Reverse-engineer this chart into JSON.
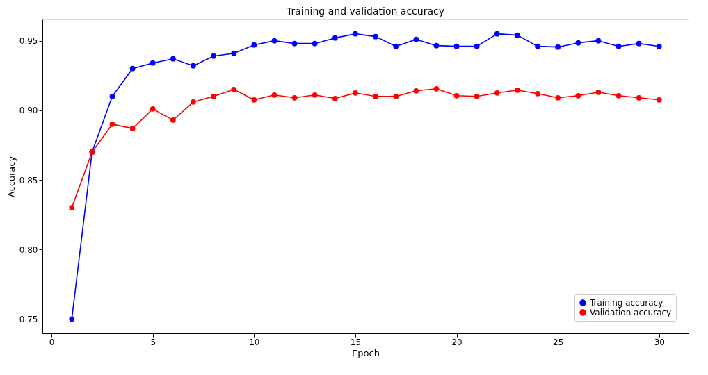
{
  "chart_data": {
    "type": "line",
    "title": "Training and validation accuracy",
    "xlabel": "Epoch",
    "ylabel": "Accuracy",
    "x": [
      1,
      2,
      3,
      4,
      5,
      6,
      7,
      8,
      9,
      10,
      11,
      12,
      13,
      14,
      15,
      16,
      17,
      18,
      19,
      20,
      21,
      22,
      23,
      24,
      25,
      26,
      27,
      28,
      29,
      30
    ],
    "series": [
      {
        "name": "Training accuracy",
        "color": "#0000ff",
        "values": [
          0.75,
          0.87,
          0.91,
          0.93,
          0.934,
          0.937,
          0.932,
          0.939,
          0.941,
          0.947,
          0.95,
          0.948,
          0.948,
          0.952,
          0.955,
          0.953,
          0.946,
          0.951,
          0.9465,
          0.946,
          0.946,
          0.955,
          0.954,
          0.946,
          0.9455,
          0.9485,
          0.95,
          0.946,
          0.948,
          0.946
        ]
      },
      {
        "name": "Validation accuracy",
        "color": "#ff0000",
        "values": [
          0.83,
          0.87,
          0.89,
          0.887,
          0.901,
          0.893,
          0.906,
          0.91,
          0.915,
          0.9075,
          0.911,
          0.909,
          0.911,
          0.9085,
          0.9125,
          0.91,
          0.91,
          0.914,
          0.9155,
          0.9105,
          0.91,
          0.9125,
          0.9145,
          0.912,
          0.909,
          0.9105,
          0.913,
          0.9105,
          0.909,
          0.9075
        ]
      }
    ],
    "xlim": [
      -0.45,
      31.45
    ],
    "xticks": [
      0,
      5,
      10,
      15,
      20,
      25,
      30
    ],
    "ylim": [
      0.7397,
      0.9653
    ],
    "yticks": [
      0.75,
      {
        "value": 0.8,
        "label": "0.80"
      },
      0.85,
      {
        "value": 0.9,
        "label": "0.90"
      },
      0.95
    ],
    "grid": false,
    "legend": "bottom right",
    "marker": "circle",
    "line_style": "solid"
  }
}
